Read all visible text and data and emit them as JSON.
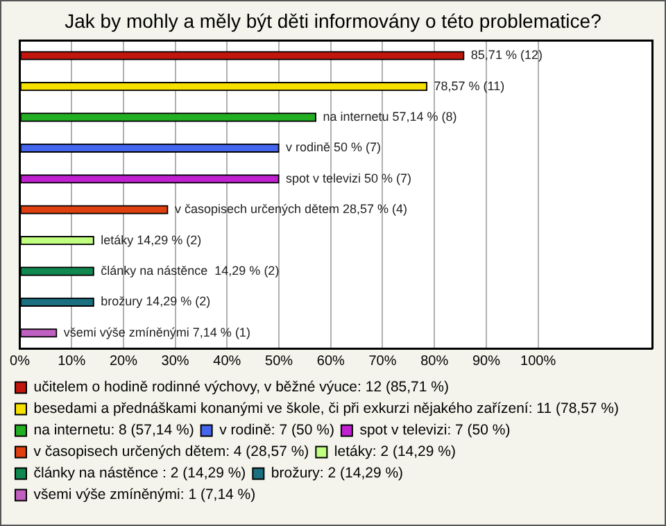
{
  "chart_data": {
    "type": "bar",
    "orientation": "horizontal",
    "title": "Jak by mohly a měly být děti informovány o této problematice?",
    "categories": [
      null,
      null,
      null,
      null,
      null,
      null,
      null,
      null,
      null,
      null
    ],
    "series": [
      {
        "name": "učitelem o hodině rodinné výchovy, v běžné výuce: 12 (85,71 %)",
        "color": "#c0160e",
        "values": [
          85.71,
          null,
          null,
          null,
          null,
          null,
          null,
          null,
          null,
          null
        ],
        "value_labels": [
          "85,71 % (12)",
          null,
          null,
          null,
          null,
          null,
          null,
          null,
          null,
          null
        ]
      },
      {
        "name": "besedami a přednáškami konanými ve škole, či při exkurzi nějakého zařízení: 11 (78,57 %)",
        "color": "#f5e000",
        "values": [
          null,
          78.57,
          null,
          null,
          null,
          null,
          null,
          null,
          null,
          null
        ],
        "value_labels": [
          null,
          "78,57 % (11)",
          null,
          null,
          null,
          null,
          null,
          null,
          null,
          null
        ]
      },
      {
        "name": "na internetu: 8 (57,14 %)",
        "color": "#22b022",
        "values": [
          null,
          null,
          57.14,
          null,
          null,
          null,
          null,
          null,
          null,
          null
        ],
        "value_labels": [
          null,
          null,
          "na internetu 57,14 % (8)",
          null,
          null,
          null,
          null,
          null,
          null,
          null
        ]
      },
      {
        "name": "v rodině: 7 (50 %)",
        "color": "#4466ee",
        "values": [
          null,
          null,
          null,
          50,
          null,
          null,
          null,
          null,
          null,
          null
        ],
        "value_labels": [
          null,
          null,
          null,
          "v rodině 50 % (7)",
          null,
          null,
          null,
          null,
          null,
          null
        ]
      },
      {
        "name": "spot v televizi: 7 (50 %)",
        "color": "#c020d0",
        "values": [
          null,
          null,
          null,
          null,
          50,
          null,
          null,
          null,
          null,
          null
        ],
        "value_labels": [
          null,
          null,
          null,
          null,
          "spot v televizi 50 % (7)",
          null,
          null,
          null,
          null,
          null
        ]
      },
      {
        "name": "v časopisech určených dětem: 4 (28,57 %)",
        "color": "#e04010",
        "values": [
          null,
          null,
          null,
          null,
          null,
          28.57,
          null,
          null,
          null,
          null
        ],
        "value_labels": [
          null,
          null,
          null,
          null,
          null,
          "v časopisech určených dětem 28,57 % (4)",
          null,
          null,
          null,
          null
        ]
      },
      {
        "name": "letáky: 2 (14,29 %)",
        "color": "#c0ff80",
        "values": [
          null,
          null,
          null,
          null,
          null,
          null,
          14.29,
          null,
          null,
          null
        ],
        "value_labels": [
          null,
          null,
          null,
          null,
          null,
          null,
          "letáky 14,29 % (2)",
          null,
          null,
          null
        ]
      },
      {
        "name": "články na nástěnce : 2 (14,29 %)",
        "color": "#108850",
        "values": [
          null,
          null,
          null,
          null,
          null,
          null,
          null,
          14.29,
          null,
          null
        ],
        "value_labels": [
          null,
          null,
          null,
          null,
          null,
          null,
          null,
          "články na nástěnce  14,29 % (2)",
          null,
          null
        ]
      },
      {
        "name": "brožury: 2 (14,29 %)",
        "color": "#1a7080",
        "values": [
          null,
          null,
          null,
          null,
          null,
          null,
          null,
          null,
          14.29,
          null
        ],
        "value_labels": [
          null,
          null,
          null,
          null,
          null,
          null,
          null,
          null,
          "brožury 14,29 % (2)",
          null
        ]
      },
      {
        "name": "všemi výše zmíněnými: 1 (7,14 %)",
        "color": "#c060c0",
        "values": [
          null,
          null,
          null,
          null,
          null,
          null,
          null,
          null,
          null,
          7.14
        ],
        "value_labels": [
          null,
          null,
          null,
          null,
          null,
          null,
          null,
          null,
          null,
          "všemi výše zmíněnými 7,14 % (1)"
        ]
      }
    ],
    "xlim": [
      0,
      122
    ],
    "xticks": [
      {
        "value": 0,
        "label": "0%"
      },
      {
        "value": 10,
        "label": "10%"
      },
      {
        "value": 20,
        "label": "20%"
      },
      {
        "value": 30,
        "label": "30%"
      },
      {
        "value": 40,
        "label": "40%"
      },
      {
        "value": 50,
        "label": "50%"
      },
      {
        "value": 60,
        "label": "60%"
      },
      {
        "value": 70,
        "label": "70%"
      },
      {
        "value": 80,
        "label": "80%"
      },
      {
        "value": 90,
        "label": "90%"
      },
      {
        "value": 100,
        "label": "100%"
      }
    ],
    "grid": "x",
    "tick_labels": "x",
    "legend": "bottom"
  }
}
